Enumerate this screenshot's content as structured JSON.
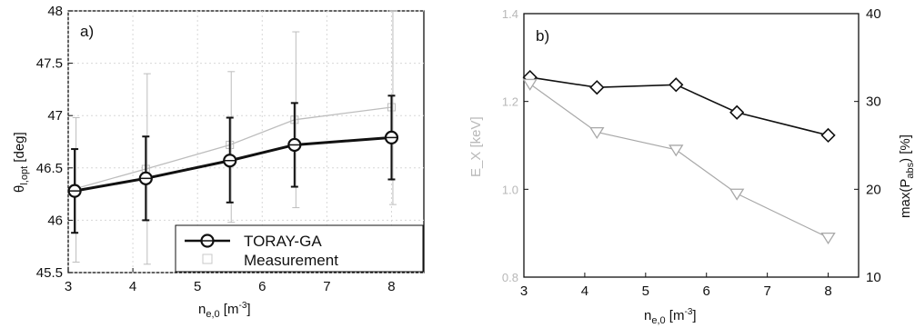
{
  "chart_data": [
    {
      "type": "line",
      "panel_label": "a)",
      "x": [
        3.1,
        4.2,
        5.5,
        6.5,
        8.0
      ],
      "xlim": [
        3,
        8.5
      ],
      "xticks": [
        3,
        4,
        5,
        6,
        7,
        8
      ],
      "ylim": [
        45.5,
        48
      ],
      "yticks": [
        45.5,
        46,
        46.5,
        47,
        47.5,
        48
      ],
      "ytick_labels": [
        "45.5",
        "46",
        "46.5",
        "47",
        "47.5",
        "48"
      ],
      "xlabel_main": "n",
      "xlabel_sub": "e,0",
      "xlabel_unit": " [m",
      "xlabel_sup": "-3",
      "xlabel_close": "]",
      "ylabel_main": "θ",
      "ylabel_sub": "l,opt",
      "ylabel_unit": " [deg]",
      "grid": true,
      "legend_position": "bottom-right",
      "series": [
        {
          "name": "TORAY-GA",
          "values": [
            46.28,
            46.4,
            46.57,
            46.72,
            46.79
          ],
          "err_low": [
            45.88,
            46.0,
            46.17,
            46.32,
            46.39
          ],
          "err_high": [
            46.68,
            46.8,
            46.98,
            47.12,
            47.19
          ],
          "color": "#111111",
          "marker": "circle-cross"
        },
        {
          "name": "Measurement",
          "values": [
            46.3,
            46.49,
            46.72,
            46.96,
            47.08
          ],
          "err_low": [
            45.6,
            45.58,
            45.98,
            46.12,
            46.15
          ],
          "err_high": [
            46.98,
            47.4,
            47.42,
            47.8,
            48.0
          ],
          "color": "#bdbdbd",
          "marker": "square"
        }
      ]
    },
    {
      "type": "line",
      "panel_label": "b)",
      "x": [
        3.1,
        4.2,
        5.5,
        6.5,
        8.0
      ],
      "xlim": [
        3,
        8.5
      ],
      "xticks": [
        3,
        4,
        5,
        6,
        7,
        8
      ],
      "ylim_left": [
        0.8,
        1.4
      ],
      "yticks_left": [
        0.8,
        1.0,
        1.2,
        1.4
      ],
      "ytick_labels_left": [
        "0.8",
        "1.0",
        "1.2",
        "1.4"
      ],
      "ylabel_left": "E_X [keV]",
      "ylim_right": [
        10,
        40
      ],
      "yticks_right": [
        10,
        20,
        30,
        40
      ],
      "ytick_labels_right": [
        "10",
        "20",
        "30",
        "40"
      ],
      "ylabel_right_main": "max(P",
      "ylabel_right_sub": "abs",
      "ylabel_right_unit": ") [%]",
      "xlabel_main": "n",
      "xlabel_sub": "e,0",
      "xlabel_unit": " [m",
      "xlabel_sup": "-3",
      "xlabel_close": "]",
      "grid": false,
      "series": [
        {
          "name": "",
          "axis": "left",
          "values": [
            1.255,
            1.232,
            1.238,
            1.175,
            1.123
          ],
          "color": "#111111",
          "marker": "diamond"
        },
        {
          "name": "",
          "axis": "right",
          "values": [
            32.0,
            26.5,
            24.5,
            19.5,
            14.5
          ],
          "color": "#a8a8a8",
          "marker": "triangle-down"
        }
      ]
    }
  ]
}
